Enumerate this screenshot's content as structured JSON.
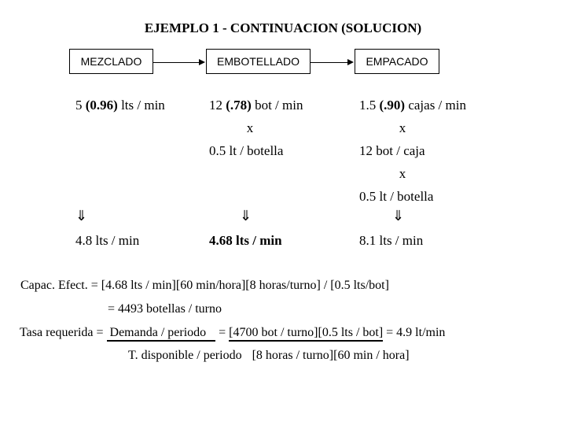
{
  "title": "EJEMPLO 1 - CONTINUACION (SOLUCION)",
  "stages": [
    {
      "label": "MEZCLADO"
    },
    {
      "label": "EMBOTELLADO"
    },
    {
      "label": "EMPACADO"
    }
  ],
  "mezclado": {
    "rate_prefix": "5 ",
    "rate_bold": "(0.96)",
    "rate_suffix": " lts / min",
    "result": "4.8 lts / min"
  },
  "embotellado": {
    "rate_prefix": "12 ",
    "rate_bold": "(.78)",
    "rate_suffix": " bot / min",
    "times": "x",
    "factor": "0.5 lt / botella",
    "result": "4.68 lts / min"
  },
  "empacado": {
    "rate_prefix": "1.5 ",
    "rate_bold": "(.90)",
    "rate_suffix": " cajas / min",
    "times1": "x",
    "factor1": "12 bot / caja",
    "times2": "x",
    "factor2": "0.5 lt / botella",
    "result": "8.1 lts / min"
  },
  "down_arrow_glyph": "⇓",
  "capacity": {
    "line1": "Capac. Efect. = [4.68 lts / min][60 min/hora][8 horas/turno] / [0.5 lts/bot]",
    "line2": "= 4493 botellas / turno"
  },
  "rate": {
    "label": "Tasa requerida = ",
    "numerator": "Demanda / periodo",
    "equals": " = ",
    "formula_numerator": "[4700 bot / turno][0.5 lts / bot]",
    "result": " = 4.9 lt/min",
    "denominator": "T. disponible / periodo",
    "formula_denominator": "[8 horas / turno][60 min / hora]"
  }
}
